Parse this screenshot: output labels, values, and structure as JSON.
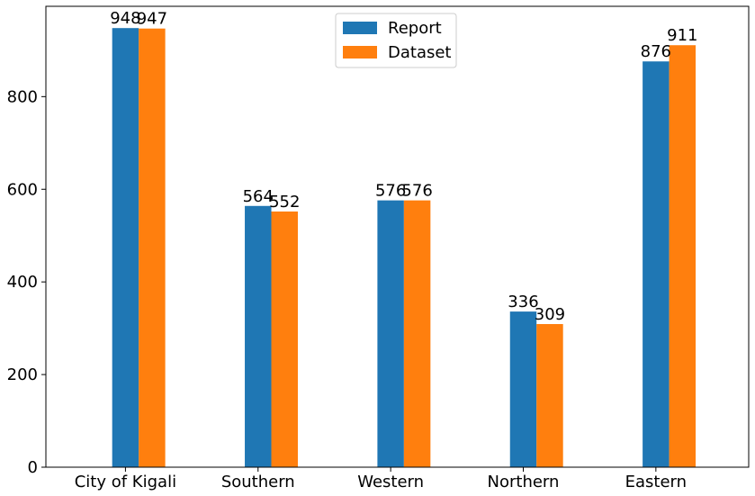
{
  "chart_data": {
    "type": "bar",
    "categories": [
      "City of Kigali",
      "Southern",
      "Western",
      "Northern",
      "Eastern"
    ],
    "series": [
      {
        "name": "Report",
        "values": [
          948,
          564,
          576,
          336,
          876
        ],
        "color": "#1f77b4"
      },
      {
        "name": "Dataset",
        "values": [
          947,
          552,
          576,
          309,
          911
        ],
        "color": "#ff7f0e"
      }
    ],
    "ylim": [
      0,
      995
    ],
    "yticks": [
      0,
      200,
      400,
      600,
      800
    ],
    "title": "",
    "xlabel": "",
    "ylabel": "",
    "grid": false,
    "legend_position": "top-center",
    "data_labels": true
  }
}
